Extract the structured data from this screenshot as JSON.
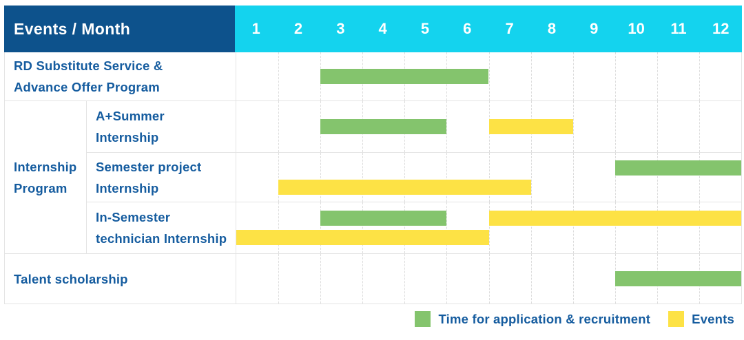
{
  "colors": {
    "header_bg": "#0d528c",
    "months_bg": "#14d3ee",
    "green": "#84c46d",
    "yellow": "#fde245",
    "label_text": "#155c9f"
  },
  "header": {
    "title": "Events / Month",
    "months": [
      "1",
      "2",
      "3",
      "4",
      "5",
      "6",
      "7",
      "8",
      "9",
      "10",
      "11",
      "12"
    ]
  },
  "group": {
    "label": "Internship\nProgram"
  },
  "rows": [
    {
      "label": "RD Substitute Service &\nAdvance Offer Program",
      "lanes": 1,
      "bars": [
        {
          "color": "green",
          "start": 3,
          "end": 6,
          "lane": 0
        }
      ]
    },
    {
      "label": "A+Summer\nInternship",
      "lanes": 1,
      "bars": [
        {
          "color": "green",
          "start": 3,
          "end": 5,
          "lane": 0
        },
        {
          "color": "yellow",
          "start": 7,
          "end": 8,
          "lane": 0
        }
      ]
    },
    {
      "label": "Semester project\nInternship",
      "lanes": 2,
      "bars": [
        {
          "color": "green",
          "start": 10,
          "end": 12,
          "lane": 0
        },
        {
          "color": "yellow",
          "start": 2,
          "end": 7,
          "lane": 1
        }
      ]
    },
    {
      "label": "In-Semester\ntechnician Internship",
      "lanes": 2,
      "bars": [
        {
          "color": "green",
          "start": 3,
          "end": 5,
          "lane": 0
        },
        {
          "color": "yellow",
          "start": 7,
          "end": 12,
          "lane": 0
        },
        {
          "color": "yellow",
          "start": 1,
          "end": 6,
          "lane": 1
        }
      ]
    },
    {
      "label": "Talent scholarship",
      "lanes": 1,
      "bars": [
        {
          "color": "green",
          "start": 10,
          "end": 12,
          "lane": 0
        }
      ]
    }
  ],
  "legend": {
    "items": [
      {
        "label": "Time for application & recruitment",
        "color": "green"
      },
      {
        "label": "Events",
        "color": "yellow"
      }
    ]
  },
  "chart_data": {
    "type": "bar",
    "subtype": "gantt",
    "title": "Events / Month",
    "x_axis": {
      "label": "Month",
      "ticks": [
        1,
        2,
        3,
        4,
        5,
        6,
        7,
        8,
        9,
        10,
        11,
        12
      ],
      "range": [
        1,
        12
      ]
    },
    "series_legend": [
      "Time for application & recruitment",
      "Events"
    ],
    "tasks": [
      {
        "group": null,
        "label": "RD Substitute Service & Advance Offer Program",
        "bars": [
          {
            "series": "Time for application & recruitment",
            "start_month": 3,
            "end_month": 6
          }
        ]
      },
      {
        "group": "Internship Program",
        "label": "A+Summer Internship",
        "bars": [
          {
            "series": "Time for application & recruitment",
            "start_month": 3,
            "end_month": 5
          },
          {
            "series": "Events",
            "start_month": 7,
            "end_month": 8
          }
        ]
      },
      {
        "group": "Internship Program",
        "label": "Semester project Internship",
        "bars": [
          {
            "series": "Time for application & recruitment",
            "start_month": 10,
            "end_month": 12
          },
          {
            "series": "Events",
            "start_month": 2,
            "end_month": 7
          }
        ]
      },
      {
        "group": "Internship Program",
        "label": "In-Semester technician Internship",
        "bars": [
          {
            "series": "Time for application & recruitment",
            "start_month": 3,
            "end_month": 5
          },
          {
            "series": "Events",
            "start_month": 7,
            "end_month": 12
          },
          {
            "series": "Events",
            "start_month": 1,
            "end_month": 6
          }
        ]
      },
      {
        "group": null,
        "label": "Talent scholarship",
        "bars": [
          {
            "series": "Time for application & recruitment",
            "start_month": 10,
            "end_month": 12
          }
        ]
      }
    ],
    "layout": {
      "grid": "dashed-vertical-month-lines",
      "legend_position": "bottom-right"
    }
  }
}
